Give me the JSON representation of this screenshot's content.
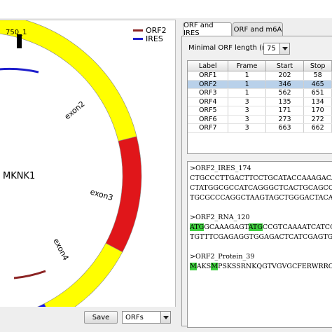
{
  "top_bar": {
    "text": ""
  },
  "circle_plot": {
    "gene_name": "MKNK1",
    "position_marker": "750_1",
    "exon_labels": [
      "exon2",
      "exon3",
      "exon4"
    ],
    "legend": [
      {
        "label": "ORF2",
        "color": "#8b2323"
      },
      {
        "label": "IRES",
        "color": "#1f1fcc"
      }
    ],
    "segment_colors": {
      "pink": "#f7b6c8",
      "yellow": "#ffff00",
      "red": "#e0161a",
      "blue": "#1414ee",
      "green": "#22dd22"
    }
  },
  "controls": {
    "save_label": "Save",
    "view_select": "ORFs"
  },
  "tabs": [
    {
      "label": "ORF and IRES",
      "active": true
    },
    {
      "label": "ORF and m6A",
      "active": false
    }
  ],
  "orf_settings": {
    "min_length_label": "Minimal ORF length (nt):",
    "min_length_value": "75"
  },
  "orf_table": {
    "columns": [
      "Label",
      "Frame",
      "Start",
      "Stop"
    ],
    "rows": [
      {
        "label": "ORF1",
        "frame": "1",
        "start": "202",
        "stop": "58",
        "selected": false
      },
      {
        "label": "ORF2",
        "frame": "1",
        "start": "346",
        "stop": "465",
        "selected": true
      },
      {
        "label": "ORF3",
        "frame": "1",
        "start": "562",
        "stop": "651",
        "selected": false
      },
      {
        "label": "ORF4",
        "frame": "3",
        "start": "135",
        "stop": "134",
        "selected": false
      },
      {
        "label": "ORF5",
        "frame": "3",
        "start": "171",
        "stop": "170",
        "selected": false
      },
      {
        "label": "ORF6",
        "frame": "3",
        "start": "273",
        "stop": "272",
        "selected": false
      },
      {
        "label": "ORF7",
        "frame": "3",
        "start": "663",
        "stop": "662",
        "selected": false
      }
    ]
  },
  "sequences": {
    "ires_header": ">ORF2_IRES_174",
    "ires_line1": "CTGCCCTTGACTTCCTGCATACCAAAGACAAAGT",
    "ires_line2": "CTATGGCGCCATCAGGGCTCACTGCAGCCCCAAC",
    "ires_line3": "TGCGCCCAGGCTAAGTAGCTGGGACTACAGGTGT",
    "rna_header": ">ORF2_RNA_120",
    "rna_line1_a": "ATG",
    "rna_line1_b": "GCAAAGAGT",
    "rna_line1_c": "ATG",
    "rna_line1_d": "CCGTCAAAATCATCGAGAAAG",
    "rna_line2": "TGTTTCGAGAGGTGGAGACTCATCGAGTGTCAGG",
    "protein_header": ">ORF2_Protein_39",
    "protein_a": "M",
    "protein_b": "AKS",
    "protein_c": "M",
    "protein_d": "PSKSSRNKQGTVGVGCFERWRRCISVRETEL"
  }
}
